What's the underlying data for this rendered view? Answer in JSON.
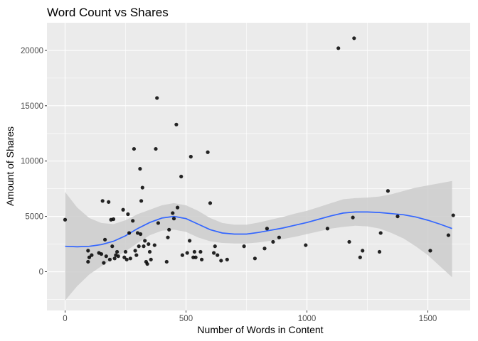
{
  "chart_data": {
    "type": "scatter",
    "title": "Word Count vs Shares",
    "xlabel": "Number of Words in Content",
    "ylabel": "Amount of Shares",
    "xlim": [
      -75,
      1675
    ],
    "ylim": [
      -3500,
      22500
    ],
    "x_ticks": [
      0,
      500,
      1000,
      1500
    ],
    "x_tick_labels": [
      "0",
      "500",
      "1000",
      "1500"
    ],
    "y_ticks": [
      0,
      5000,
      10000,
      15000,
      20000
    ],
    "y_tick_labels": [
      "0",
      "5000",
      "10000",
      "15000",
      "20000"
    ],
    "grid": true,
    "legend": "none",
    "colors": {
      "panel": "#ebebeb",
      "grid": "#ffffff",
      "points": "#000000",
      "smooth_line": "#3366ff",
      "confidence_band": "#cccccc"
    },
    "points": [
      {
        "x": 0,
        "y": 4700
      },
      {
        "x": 95,
        "y": 900
      },
      {
        "x": 95,
        "y": 1900
      },
      {
        "x": 100,
        "y": 1300
      },
      {
        "x": 110,
        "y": 1500
      },
      {
        "x": 140,
        "y": 1700
      },
      {
        "x": 150,
        "y": 1600
      },
      {
        "x": 155,
        "y": 6400
      },
      {
        "x": 160,
        "y": 800
      },
      {
        "x": 165,
        "y": 2900
      },
      {
        "x": 170,
        "y": 1400
      },
      {
        "x": 180,
        "y": 6300
      },
      {
        "x": 185,
        "y": 1100
      },
      {
        "x": 190,
        "y": 4700
      },
      {
        "x": 195,
        "y": 2300
      },
      {
        "x": 200,
        "y": 4750
      },
      {
        "x": 205,
        "y": 1200
      },
      {
        "x": 210,
        "y": 1500
      },
      {
        "x": 215,
        "y": 1800
      },
      {
        "x": 220,
        "y": 1400
      },
      {
        "x": 240,
        "y": 5600
      },
      {
        "x": 245,
        "y": 1300
      },
      {
        "x": 250,
        "y": 1800
      },
      {
        "x": 255,
        "y": 1100
      },
      {
        "x": 260,
        "y": 5200
      },
      {
        "x": 265,
        "y": 3500
      },
      {
        "x": 270,
        "y": 1200
      },
      {
        "x": 280,
        "y": 4600
      },
      {
        "x": 285,
        "y": 11100
      },
      {
        "x": 290,
        "y": 1900
      },
      {
        "x": 295,
        "y": 1500
      },
      {
        "x": 300,
        "y": 3500
      },
      {
        "x": 305,
        "y": 2300
      },
      {
        "x": 310,
        "y": 9300
      },
      {
        "x": 312,
        "y": 3400
      },
      {
        "x": 315,
        "y": 6400
      },
      {
        "x": 320,
        "y": 7600
      },
      {
        "x": 325,
        "y": 2300
      },
      {
        "x": 330,
        "y": 2800
      },
      {
        "x": 335,
        "y": 900
      },
      {
        "x": 340,
        "y": 700
      },
      {
        "x": 345,
        "y": 2500
      },
      {
        "x": 350,
        "y": 1800
      },
      {
        "x": 355,
        "y": 1100
      },
      {
        "x": 370,
        "y": 2400
      },
      {
        "x": 375,
        "y": 11100
      },
      {
        "x": 380,
        "y": 15700
      },
      {
        "x": 385,
        "y": 4400
      },
      {
        "x": 420,
        "y": 900
      },
      {
        "x": 425,
        "y": 3100
      },
      {
        "x": 430,
        "y": 3800
      },
      {
        "x": 445,
        "y": 5300
      },
      {
        "x": 450,
        "y": 4800
      },
      {
        "x": 460,
        "y": 13300
      },
      {
        "x": 465,
        "y": 5800
      },
      {
        "x": 480,
        "y": 8600
      },
      {
        "x": 485,
        "y": 1500
      },
      {
        "x": 505,
        "y": 1700
      },
      {
        "x": 515,
        "y": 2800
      },
      {
        "x": 520,
        "y": 10400
      },
      {
        "x": 530,
        "y": 1300
      },
      {
        "x": 535,
        "y": 1800
      },
      {
        "x": 540,
        "y": 1300
      },
      {
        "x": 560,
        "y": 1800
      },
      {
        "x": 565,
        "y": 1100
      },
      {
        "x": 590,
        "y": 10800
      },
      {
        "x": 600,
        "y": 6200
      },
      {
        "x": 615,
        "y": 1700
      },
      {
        "x": 620,
        "y": 2300
      },
      {
        "x": 630,
        "y": 1500
      },
      {
        "x": 645,
        "y": 1000
      },
      {
        "x": 670,
        "y": 1100
      },
      {
        "x": 740,
        "y": 2300
      },
      {
        "x": 785,
        "y": 1200
      },
      {
        "x": 825,
        "y": 2100
      },
      {
        "x": 835,
        "y": 3900
      },
      {
        "x": 860,
        "y": 2700
      },
      {
        "x": 885,
        "y": 3100
      },
      {
        "x": 995,
        "y": 2400
      },
      {
        "x": 1085,
        "y": 3900
      },
      {
        "x": 1130,
        "y": 20200
      },
      {
        "x": 1175,
        "y": 2700
      },
      {
        "x": 1190,
        "y": 4900
      },
      {
        "x": 1195,
        "y": 21100
      },
      {
        "x": 1220,
        "y": 1300
      },
      {
        "x": 1230,
        "y": 1900
      },
      {
        "x": 1300,
        "y": 1800
      },
      {
        "x": 1305,
        "y": 3500
      },
      {
        "x": 1335,
        "y": 7300
      },
      {
        "x": 1375,
        "y": 5000
      },
      {
        "x": 1510,
        "y": 1900
      },
      {
        "x": 1585,
        "y": 3300
      },
      {
        "x": 1605,
        "y": 5100
      }
    ],
    "smooth_line": {
      "x": [
        0,
        50,
        100,
        150,
        200,
        250,
        300,
        350,
        400,
        450,
        500,
        550,
        600,
        650,
        700,
        750,
        800,
        850,
        900,
        950,
        1000,
        1050,
        1100,
        1150,
        1200,
        1250,
        1300,
        1350,
        1400,
        1450,
        1500,
        1550,
        1600
      ],
      "y": [
        2300,
        2250,
        2300,
        2450,
        2750,
        3250,
        3900,
        4450,
        4850,
        5000,
        4800,
        4300,
        3800,
        3500,
        3400,
        3400,
        3550,
        3750,
        3950,
        4200,
        4450,
        4750,
        5050,
        5300,
        5400,
        5400,
        5350,
        5250,
        5150,
        4950,
        4650,
        4300,
        3900
      ],
      "ci_lower": [
        -2600,
        -1300,
        -250,
        500,
        1200,
        1850,
        2600,
        3300,
        3700,
        3800,
        3600,
        3100,
        2750,
        2600,
        2550,
        2550,
        2650,
        2800,
        2950,
        3150,
        3400,
        3650,
        3900,
        4050,
        4150,
        4100,
        3900,
        3500,
        3000,
        2300,
        1500,
        500,
        -500
      ],
      "ci_upper": [
        7200,
        5800,
        4850,
        4400,
        4300,
        4650,
        5200,
        5600,
        6000,
        6200,
        6000,
        5500,
        4850,
        4400,
        4250,
        4250,
        4450,
        4700,
        4950,
        5250,
        5500,
        5850,
        6200,
        6550,
        6650,
        6700,
        6800,
        7000,
        7300,
        7600,
        7800,
        8000,
        8200
      ]
    }
  }
}
